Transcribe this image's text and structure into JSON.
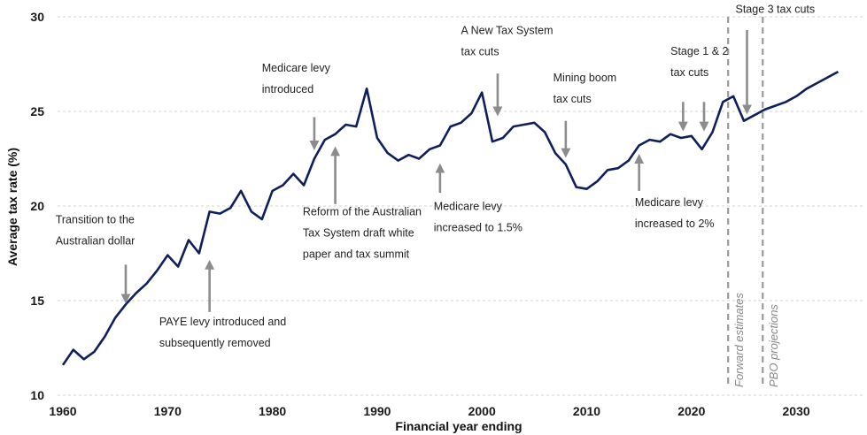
{
  "colors": {
    "line": "#0f1f5c",
    "grid": "#d0d0d0",
    "arrow": "#8c8c8c",
    "divider": "#9a9a9a"
  },
  "chart_data": {
    "type": "line",
    "title": "",
    "xlabel": "Financial year ending",
    "ylabel": "Average tax rate (%)",
    "xlim": [
      1959,
      2035
    ],
    "ylim": [
      10,
      30
    ],
    "xticks": [
      1960,
      1970,
      1980,
      1990,
      2000,
      2010,
      2020,
      2030
    ],
    "yticks": [
      10,
      15,
      20,
      25,
      30
    ],
    "grid": "horizontal dashed",
    "series": [
      {
        "name": "",
        "x": [
          1960,
          1961,
          1962,
          1963,
          1964,
          1965,
          1966,
          1967,
          1968,
          1969,
          1970,
          1971,
          1972,
          1973,
          1974,
          1975,
          1976,
          1977,
          1978,
          1979,
          1980,
          1981,
          1982,
          1983,
          1984,
          1985,
          1986,
          1987,
          1988,
          1989,
          1990,
          1991,
          1992,
          1993,
          1994,
          1995,
          1996,
          1997,
          1998,
          1999,
          2000,
          2001,
          2002,
          2003,
          2004,
          2005,
          2006,
          2007,
          2008,
          2009,
          2010,
          2011,
          2012,
          2013,
          2014,
          2015,
          2016,
          2017,
          2018,
          2019,
          2020,
          2021,
          2022,
          2023,
          2024,
          2025,
          2026,
          2027,
          2028,
          2029,
          2030,
          2031,
          2032,
          2033,
          2034
        ],
        "y": [
          11.6,
          12.4,
          11.9,
          12.3,
          13.1,
          14.1,
          14.8,
          15.4,
          15.9,
          16.6,
          17.4,
          16.8,
          18.2,
          17.5,
          19.7,
          19.6,
          19.9,
          20.8,
          19.7,
          19.3,
          20.8,
          21.1,
          21.7,
          21.1,
          22.5,
          23.5,
          23.8,
          24.3,
          24.2,
          26.2,
          23.6,
          22.8,
          22.4,
          22.7,
          22.5,
          23.0,
          23.2,
          24.2,
          24.4,
          24.9,
          26.0,
          23.4,
          23.6,
          24.2,
          24.3,
          24.4,
          23.9,
          22.8,
          22.2,
          21.0,
          20.9,
          21.3,
          21.9,
          22.0,
          22.4,
          23.2,
          23.5,
          23.4,
          23.8,
          23.6,
          23.7,
          23.0,
          23.9,
          25.5,
          25.8,
          24.5,
          24.8,
          25.1,
          25.3,
          25.5,
          25.8,
          26.2,
          26.5,
          26.8,
          27.1
        ]
      }
    ],
    "dividers": [
      {
        "x": 2023.5,
        "label": "Forward estimates"
      },
      {
        "x": 2026.8,
        "label": "PBO projections"
      }
    ],
    "annotations": [
      {
        "lines": [
          "Transition to the",
          "Australian dollar"
        ],
        "arrow_x": 1966,
        "arrow_from": 16.9,
        "arrow_to": 15.1,
        "direction": "down",
        "text_x": 1959.3,
        "text_y": 19.1
      },
      {
        "lines": [
          "PAYE levy introduced and",
          "subsequently removed"
        ],
        "arrow_x": 1974,
        "arrow_from": 14.4,
        "arrow_to": 16.9,
        "direction": "up",
        "text_x": 1969.2,
        "text_y": 13.7
      },
      {
        "lines": [
          "Medicare levy",
          "introduced"
        ],
        "arrow_x": 1984,
        "arrow_from": 24.7,
        "arrow_to": 23.2,
        "direction": "down",
        "text_x": 1979,
        "text_y": 27.1
      },
      {
        "lines": [
          "Reform of the Australian",
          "Tax System draft white",
          "paper and tax summit"
        ],
        "arrow_x": 1986,
        "arrow_from": 20.1,
        "arrow_to": 22.9,
        "direction": "up",
        "text_x": 1982.9,
        "text_y": 19.5
      },
      {
        "lines": [
          "A New Tax System",
          "tax cuts"
        ],
        "arrow_x": 2001.5,
        "arrow_from": 27.0,
        "arrow_to": 25.0,
        "direction": "down",
        "text_x": 1998,
        "text_y": 29.1
      },
      {
        "lines": [
          "Medicare levy",
          "increased to 1.5%"
        ],
        "arrow_x": 1996,
        "arrow_from": 20.7,
        "arrow_to": 22.0,
        "direction": "up",
        "text_x": 1995.4,
        "text_y": 19.8
      },
      {
        "lines": [
          "Mining boom",
          "tax cuts"
        ],
        "arrow_x": 2008,
        "arrow_from": 24.5,
        "arrow_to": 22.8,
        "direction": "down",
        "text_x": 2006.8,
        "text_y": 26.6
      },
      {
        "lines": [
          "Medicare levy",
          "increased to 2%"
        ],
        "arrow_x": 2015,
        "arrow_from": 20.8,
        "arrow_to": 22.5,
        "direction": "up",
        "text_x": 2014.6,
        "text_y": 20.0
      },
      {
        "lines": [
          "Stage 1 & 2",
          "tax cuts"
        ],
        "arrow_x": 2019.2,
        "arrow_from": 25.5,
        "arrow_to": 24.2,
        "direction": "down",
        "text_x": 2018,
        "text_y": 28.0
      },
      {
        "lines": [],
        "arrow_x": 2021.2,
        "arrow_from": 25.5,
        "arrow_to": 24.2,
        "direction": "down",
        "text_x": 2021.2,
        "text_y": 25.5
      },
      {
        "lines": [
          "Stage 3 tax cuts"
        ],
        "arrow_x": 2025.3,
        "arrow_from": 29.3,
        "arrow_to": 25.1,
        "direction": "down",
        "text_x": 2024.2,
        "text_y": 30.2
      }
    ]
  }
}
